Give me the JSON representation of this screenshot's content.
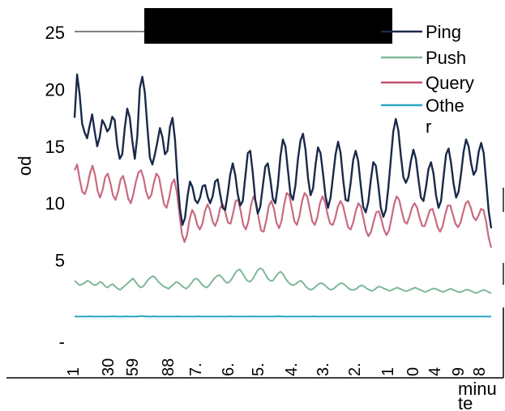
{
  "chart_data": {
    "type": "line",
    "ylabel": "od",
    "xlabel_lines": [
      "minu",
      "te"
    ],
    "ylim": [
      0,
      27
    ],
    "y_ticks": [
      {
        "value": 25,
        "label": "25"
      },
      {
        "value": 20,
        "label": "20"
      },
      {
        "value": 15,
        "label": "15"
      },
      {
        "value": 10,
        "label": "10"
      },
      {
        "value": 5,
        "label": "5"
      },
      {
        "value": 0,
        "label": "-"
      }
    ],
    "x_tick_labels": [
      "1",
      "30",
      "59",
      "88",
      "7.",
      "6.",
      "5.",
      "4.",
      "3.",
      "2.",
      "1",
      "0",
      "4",
      "9",
      "8"
    ],
    "legend_placement": "top-right",
    "grid": false,
    "series": [
      {
        "name": "Ping",
        "color": "#1a2a4a",
        "values": [
          17.5,
          21.3,
          19.6,
          17.0,
          16.2,
          15.7,
          16.8,
          17.8,
          16.3,
          15.0,
          15.8,
          17.3,
          16.9,
          16.3,
          16.6,
          17.6,
          17.3,
          15.1,
          13.9,
          14.3,
          16.6,
          18.3,
          17.5,
          15.5,
          13.9,
          15.9,
          20.1,
          21.1,
          19.7,
          16.7,
          14.0,
          13.4,
          14.3,
          15.4,
          16.6,
          15.8,
          14.3,
          14.6,
          16.7,
          17.5,
          15.6,
          12.1,
          9.5,
          8.1,
          8.7,
          10.6,
          11.9,
          11.4,
          10.3,
          10.0,
          10.5,
          11.5,
          11.6,
          10.6,
          10.0,
          10.6,
          11.9,
          12.1,
          10.8,
          9.6,
          9.4,
          10.8,
          12.5,
          13.5,
          12.5,
          10.8,
          9.8,
          10.2,
          12.3,
          14.4,
          14.6,
          12.7,
          10.3,
          9.1,
          9.7,
          11.5,
          13.2,
          13.5,
          12.1,
          10.4,
          10.0,
          11.6,
          14.1,
          15.6,
          15.0,
          12.9,
          10.8,
          10.3,
          11.6,
          13.9,
          15.5,
          16.1,
          14.7,
          12.2,
          10.7,
          11.3,
          13.4,
          14.9,
          14.4,
          12.6,
          10.6,
          9.6,
          10.5,
          12.4,
          14.3,
          15.4,
          14.4,
          12.1,
          10.3,
          10.2,
          11.8,
          13.8,
          14.6,
          13.7,
          11.6,
          9.7,
          9.2,
          10.1,
          12.0,
          13.6,
          13.3,
          11.6,
          9.6,
          8.8,
          9.4,
          11.3,
          13.8,
          16.3,
          17.4,
          16.4,
          14.2,
          12.3,
          11.8,
          12.3,
          13.7,
          14.7,
          13.9,
          12.1,
          10.5,
          10.2,
          11.4,
          13.0,
          13.6,
          12.6,
          10.7,
          9.6,
          10.2,
          12.3,
          14.3,
          14.8,
          13.5,
          11.7,
          10.5,
          11.0,
          12.6,
          14.5,
          15.6,
          15.0,
          13.5,
          12.5,
          12.9,
          14.5,
          15.3,
          14.4,
          11.9,
          9.3,
          7.8
        ],
        "note": ""
      },
      {
        "name": "Push",
        "color": "#7fb89a",
        "values": [
          3.2,
          3.0,
          2.8,
          2.9,
          3.0,
          3.2,
          3.1,
          2.9,
          2.8,
          2.9,
          3.1,
          3.0,
          2.7,
          2.6,
          2.8,
          2.9,
          2.7,
          2.5,
          2.4,
          2.6,
          2.8,
          3.0,
          3.2,
          3.4,
          3.1,
          2.8,
          2.6,
          2.7,
          3.0,
          3.3,
          3.5,
          3.6,
          3.4,
          3.1,
          2.9,
          2.7,
          2.6,
          2.5,
          2.7,
          2.9,
          3.1,
          3.0,
          2.8,
          2.6,
          2.5,
          2.7,
          3.0,
          3.3,
          3.4,
          3.2,
          2.9,
          2.7,
          2.6,
          2.8,
          3.1,
          3.4,
          3.6,
          3.7,
          3.5,
          3.2,
          3.0,
          3.1,
          3.4,
          3.8,
          4.1,
          4.2,
          3.9,
          3.5,
          3.2,
          3.1,
          3.3,
          3.7,
          4.1,
          4.3,
          4.2,
          3.8,
          3.4,
          3.2,
          3.2,
          3.5,
          3.8,
          4.0,
          3.8,
          3.4,
          3.1,
          2.9,
          2.8,
          2.9,
          3.1,
          3.2,
          3.0,
          2.7,
          2.5,
          2.4,
          2.5,
          2.7,
          2.9,
          3.0,
          2.9,
          2.7,
          2.5,
          2.4,
          2.5,
          2.7,
          2.9,
          3.0,
          2.9,
          2.7,
          2.5,
          2.4,
          2.4,
          2.5,
          2.7,
          2.8,
          2.7,
          2.5,
          2.4,
          2.3,
          2.4,
          2.6,
          2.7,
          2.6,
          2.5,
          2.4,
          2.3,
          2.4,
          2.5,
          2.6,
          2.5,
          2.4,
          2.3,
          2.3,
          2.4,
          2.5,
          2.6,
          2.5,
          2.4,
          2.3,
          2.2,
          2.3,
          2.4,
          2.5,
          2.5,
          2.4,
          2.3,
          2.2,
          2.3,
          2.4,
          2.5,
          2.4,
          2.3,
          2.2,
          2.2,
          2.3,
          2.4,
          2.4,
          2.3,
          2.2,
          2.1,
          2.2,
          2.3,
          2.4,
          2.3,
          2.2,
          2.1
        ],
        "note": ""
      },
      {
        "name": "Query",
        "color": "#c0506a",
        "values": [
          12.9,
          13.4,
          12.1,
          11.0,
          10.8,
          11.5,
          12.6,
          13.3,
          12.5,
          11.1,
          10.5,
          11.2,
          12.3,
          12.6,
          11.8,
          10.7,
          10.3,
          11.0,
          12.1,
          12.4,
          11.5,
          10.4,
          10.0,
          10.8,
          11.9,
          12.7,
          12.9,
          12.2,
          11.0,
          10.4,
          10.7,
          11.8,
          12.6,
          12.3,
          11.1,
          9.9,
          9.6,
          10.5,
          11.7,
          12.1,
          11.0,
          9.1,
          7.3,
          6.6,
          7.2,
          8.6,
          9.4,
          9.0,
          8.1,
          7.7,
          8.2,
          9.3,
          9.9,
          9.4,
          8.4,
          8.0,
          8.6,
          9.6,
          9.9,
          9.2,
          8.3,
          8.2,
          9.1,
          10.2,
          10.3,
          9.3,
          8.1,
          7.7,
          8.4,
          9.8,
          10.6,
          10.1,
          8.7,
          7.6,
          7.5,
          8.5,
          9.8,
          10.2,
          9.5,
          8.3,
          7.8,
          8.5,
          9.9,
          10.9,
          10.7,
          9.6,
          8.4,
          8.1,
          8.9,
          10.2,
          10.9,
          10.6,
          9.5,
          8.4,
          8.1,
          8.8,
          10.0,
          10.6,
          10.1,
          9.0,
          8.2,
          8.1,
          8.7,
          9.7,
          10.2,
          9.8,
          8.8,
          7.9,
          7.7,
          8.3,
          9.3,
          10.0,
          9.7,
          8.7,
          7.6,
          7.1,
          7.5,
          8.4,
          9.2,
          9.3,
          8.6,
          7.7,
          7.2,
          7.6,
          8.7,
          9.9,
          10.6,
          10.3,
          9.3,
          8.4,
          8.2,
          8.8,
          9.6,
          10.0,
          9.6,
          8.7,
          8.0,
          8.0,
          8.7,
          9.4,
          9.5,
          8.8,
          7.9,
          7.5,
          8.0,
          9.0,
          9.8,
          9.8,
          9.0,
          8.2,
          7.9,
          8.3,
          9.2,
          10.0,
          10.2,
          9.6,
          8.8,
          8.5,
          8.9,
          9.5,
          9.4,
          8.4,
          7.0,
          6.1
        ],
        "note": ""
      },
      {
        "name": "Othe\nr",
        "color": "#2aa6c4",
        "values": [
          0.05,
          0.05,
          0.06,
          0.05,
          0.05,
          0.06,
          0.07,
          0.06,
          0.05,
          0.05,
          0.06,
          0.06,
          0.05,
          0.05,
          0.06,
          0.07,
          0.07,
          0.06,
          0.05,
          0.05,
          0.06,
          0.07,
          0.06,
          0.05,
          0.05,
          0.06,
          0.08,
          0.1,
          0.08,
          0.06,
          0.05,
          0.06,
          0.07,
          0.06,
          0.05,
          0.05,
          0.06,
          0.06,
          0.05,
          0.05,
          0.06,
          0.07,
          0.06,
          0.05,
          0.05,
          0.06,
          0.06,
          0.05,
          0.05,
          0.06,
          0.07,
          0.06,
          0.05,
          0.05,
          0.06,
          0.06,
          0.05,
          0.05,
          0.06,
          0.06,
          0.05,
          0.05,
          0.06,
          0.07,
          0.06,
          0.05,
          0.05,
          0.06,
          0.06,
          0.05,
          0.05,
          0.06,
          0.07,
          0.06,
          0.05,
          0.05,
          0.06,
          0.06,
          0.05,
          0.05,
          0.06,
          0.07,
          0.08,
          0.07,
          0.06,
          0.05,
          0.05,
          0.06,
          0.06,
          0.05,
          0.05,
          0.06,
          0.06,
          0.05,
          0.05,
          0.06,
          0.07,
          0.06,
          0.05,
          0.05,
          0.06,
          0.06,
          0.05,
          0.05,
          0.06,
          0.06,
          0.05,
          0.05,
          0.06,
          0.06,
          0.05,
          0.05,
          0.06,
          0.06,
          0.05,
          0.05,
          0.06,
          0.06,
          0.05,
          0.05,
          0.06,
          0.06,
          0.05,
          0.05,
          0.06,
          0.06,
          0.05,
          0.05,
          0.06,
          0.06,
          0.05,
          0.05,
          0.06,
          0.06,
          0.05,
          0.05,
          0.06,
          0.06,
          0.05,
          0.05,
          0.06,
          0.06,
          0.05,
          0.05,
          0.06,
          0.06,
          0.05,
          0.05,
          0.06,
          0.06,
          0.05,
          0.05,
          0.06,
          0.06,
          0.05,
          0.05,
          0.06,
          0.06,
          0.05,
          0.05,
          0.06,
          0.06,
          0.05,
          0.05,
          0.06,
          0.06,
          0.05,
          0.05,
          0.06
        ],
        "note": ""
      }
    ]
  },
  "colors": {
    "redaction": "#000000",
    "axis": "#000000"
  }
}
